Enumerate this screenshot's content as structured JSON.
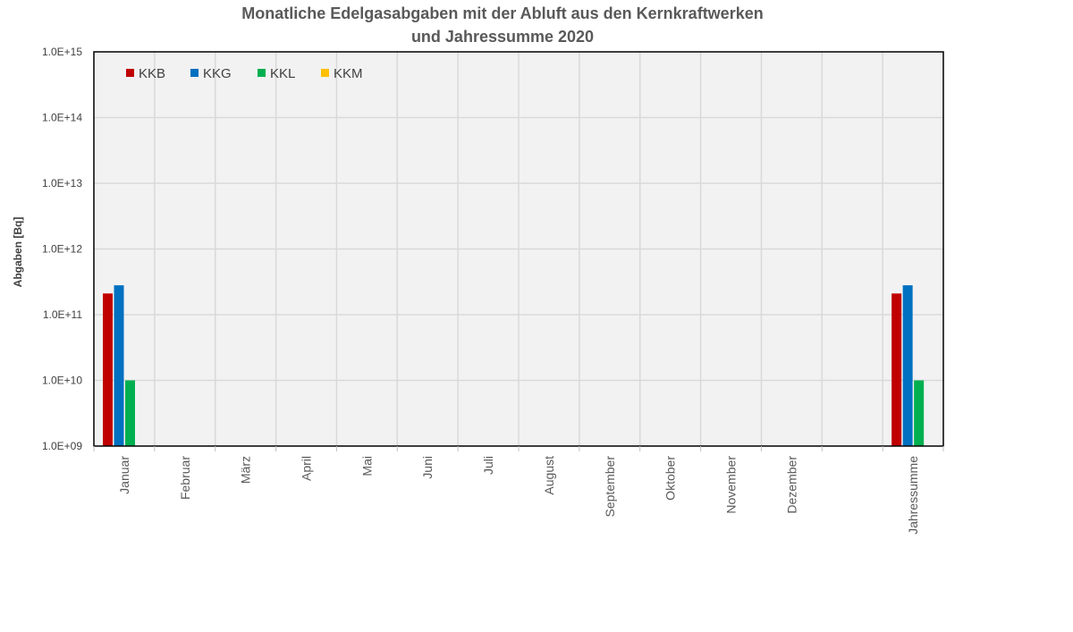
{
  "chart_data": {
    "type": "bar",
    "title": "Monatliche Edelgasabgaben mit der Abluft aus den Kernkraftwerken",
    "subtitle": "und Jahressumme 2020",
    "xlabel": "",
    "ylabel": "Abgaben [Bq]",
    "y_scale": "log",
    "ylim": [
      1000000000.0,
      1000000000000000.0
    ],
    "yticks": [
      "1.0E+09",
      "1.0E+10",
      "1.0E+11",
      "1.0E+12",
      "1.0E+13",
      "1.0E+14",
      "1.0E+15"
    ],
    "categories": [
      "Januar",
      "Februar",
      "März",
      "April",
      "Mai",
      "Juni",
      "Juli",
      "August",
      "September",
      "Oktober",
      "November",
      "Dezember",
      "",
      "Jahressumme"
    ],
    "series": [
      {
        "name": "KKB",
        "color": "#C00000",
        "values": [
          210000000000.0,
          null,
          null,
          null,
          null,
          null,
          null,
          null,
          null,
          null,
          null,
          null,
          null,
          210000000000.0
        ]
      },
      {
        "name": "KKG",
        "color": "#0070C0",
        "values": [
          280000000000.0,
          null,
          null,
          null,
          null,
          null,
          null,
          null,
          null,
          null,
          null,
          null,
          null,
          280000000000.0
        ]
      },
      {
        "name": "KKL",
        "color": "#00B050",
        "values": [
          10000000000.0,
          null,
          null,
          null,
          null,
          null,
          null,
          null,
          null,
          null,
          null,
          null,
          null,
          10000000000.0
        ]
      },
      {
        "name": "KKM",
        "color": "#FFC000",
        "values": [
          null,
          null,
          null,
          null,
          null,
          null,
          null,
          null,
          null,
          null,
          null,
          null,
          null,
          null
        ]
      }
    ],
    "grid": true,
    "legend_position": "top-left"
  }
}
